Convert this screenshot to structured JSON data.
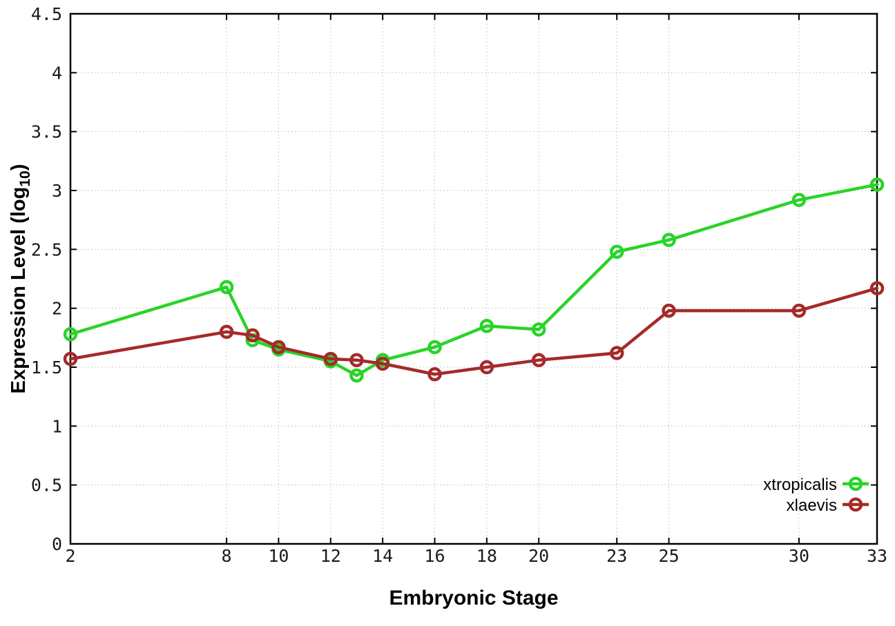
{
  "page": {
    "background": "#ffffff"
  },
  "chart_data": {
    "type": "line",
    "title": "",
    "xlabel": "Embryonic Stage",
    "ylabel": "Expression Level (log_10)",
    "ylabel_parts": {
      "main": "Expression Level (log",
      "subscript": "10",
      "suffix": ")"
    },
    "xlim": [
      2,
      33
    ],
    "ylim": [
      0,
      4.5
    ],
    "x_ticks": [
      2,
      8,
      10,
      12,
      14,
      16,
      18,
      20,
      23,
      25,
      30,
      33
    ],
    "x_tick_labels": [
      "2",
      "8",
      "10",
      "12",
      "14",
      "16",
      "18",
      "20",
      "23",
      "25",
      "30",
      "33"
    ],
    "y_ticks": [
      0,
      0.5,
      1,
      1.5,
      2,
      2.5,
      3,
      3.5,
      4,
      4.5
    ],
    "y_tick_labels": [
      "0",
      "0.5",
      "1",
      "1.5",
      "2",
      "2.5",
      "3",
      "3.5",
      "4",
      "4.5"
    ],
    "grid": true,
    "legend_position": "bottom-right",
    "marker": "open-circle",
    "x": [
      2,
      8,
      9,
      10,
      12,
      13,
      14,
      16,
      18,
      20,
      23,
      25,
      30,
      33
    ],
    "series": [
      {
        "name": "xtropicalis",
        "color": "#28d428",
        "values": [
          1.78,
          2.18,
          1.73,
          1.65,
          1.55,
          1.43,
          1.56,
          1.67,
          1.85,
          1.82,
          2.48,
          2.58,
          2.92,
          3.05
        ]
      },
      {
        "name": "xlaevis",
        "color": "#a52a2a",
        "values": [
          1.57,
          1.8,
          1.77,
          1.67,
          1.57,
          1.56,
          1.53,
          1.44,
          1.5,
          1.56,
          1.62,
          1.98,
          1.98,
          2.17
        ]
      }
    ],
    "colors": {
      "grid": "#bbbbbb",
      "axis": "#000000",
      "tick_text": "#1a1a1a",
      "label_text": "#000000"
    }
  }
}
